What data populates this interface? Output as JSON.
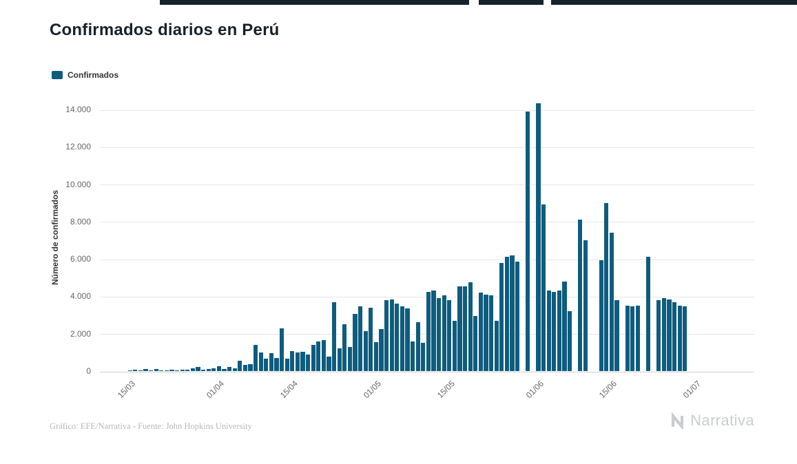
{
  "page": {
    "title": "Confirmados diarios en Perú",
    "legend_label": "Confirmados",
    "y_axis_title": "Número de confirmados",
    "credit": "Gráfico: EFE/Narrativa - Fuente: John Hopkins University",
    "brand": "Narrativa"
  },
  "colors": {
    "bar": "#0e5c7e",
    "grid": "#e6e6e6",
    "axis_line": "#cfcfcf",
    "axis_label": "#666666",
    "title": "#15212b",
    "credit": "#b8b8b8",
    "brand": "#c9cdd1",
    "top_strip": "#16222c"
  },
  "chart_data": {
    "type": "bar",
    "title": "Confirmados diarios en Perú",
    "xlabel": "",
    "ylabel": "Número de confirmados",
    "ylim": [
      0,
      14000
    ],
    "grid": true,
    "legend_position": "top-left",
    "y_ticks": [
      {
        "label": "0",
        "value": 0
      },
      {
        "label": "2.000",
        "value": 2000
      },
      {
        "label": "4.000",
        "value": 4000
      },
      {
        "label": "6.000",
        "value": 6000
      },
      {
        "label": "8.000",
        "value": 8000
      },
      {
        "label": "10.000",
        "value": 10000
      },
      {
        "label": "12.000",
        "value": 12000
      },
      {
        "label": "14.000",
        "value": 14000
      }
    ],
    "x_ticks": [
      {
        "label": "15/03",
        "day": 0
      },
      {
        "label": "01/04",
        "day": 17
      },
      {
        "label": "15/04",
        "day": 31
      },
      {
        "label": "01/05",
        "day": 47
      },
      {
        "label": "15/05",
        "day": 61
      },
      {
        "label": "01/06",
        "day": 78
      },
      {
        "label": "15/06",
        "day": 92
      },
      {
        "label": "01/07",
        "day": 108
      }
    ],
    "dates": [
      "15/03",
      "16/03",
      "17/03",
      "18/03",
      "19/03",
      "20/03",
      "21/03",
      "22/03",
      "23/03",
      "24/03",
      "25/03",
      "26/03",
      "27/03",
      "28/03",
      "29/03",
      "30/03",
      "31/03",
      "01/04",
      "02/04",
      "03/04",
      "04/04",
      "05/04",
      "06/04",
      "07/04",
      "08/04",
      "09/04",
      "10/04",
      "11/04",
      "12/04",
      "13/04",
      "14/04",
      "15/04",
      "16/04",
      "17/04",
      "18/04",
      "19/04",
      "20/04",
      "21/04",
      "22/04",
      "23/04",
      "24/04",
      "25/04",
      "26/04",
      "27/04",
      "28/04",
      "29/04",
      "30/04",
      "01/05",
      "02/05",
      "03/05",
      "04/05",
      "05/05",
      "06/05",
      "07/05",
      "08/05",
      "09/05",
      "10/05",
      "11/05",
      "12/05",
      "13/05",
      "14/05",
      "15/05",
      "16/05",
      "17/05",
      "18/05",
      "19/05",
      "20/05",
      "21/05",
      "22/05",
      "23/05",
      "24/05",
      "25/05",
      "26/05",
      "27/05",
      "28/05",
      "29/05",
      "30/05",
      "31/05",
      "01/06",
      "02/06",
      "03/06",
      "04/06",
      "05/06",
      "06/06",
      "07/06",
      "08/06",
      "09/06",
      "10/06",
      "11/06",
      "12/06",
      "13/06",
      "14/06",
      "15/06",
      "16/06",
      "17/06",
      "18/06",
      "19/06",
      "20/06",
      "21/06",
      "22/06",
      "23/06",
      "24/06",
      "25/06",
      "26/06",
      "27/06",
      "28/06",
      "29/06",
      "30/06"
    ],
    "series": [
      {
        "name": "Confirmados",
        "values": [
          40,
          90,
          30,
          110,
          40,
          120,
          40,
          50,
          70,
          40,
          70,
          90,
          130,
          210,
          60,
          110,
          160,
          250,
          110,
          220,
          160,
          560,
          330,
          380,
          1400,
          1000,
          670,
          950,
          690,
          2270,
          660,
          1060,
          1010,
          1050,
          890,
          1410,
          1570,
          1650,
          780,
          3700,
          1200,
          2500,
          1300,
          3050,
          3450,
          2150,
          3400,
          1550,
          2250,
          3800,
          3850,
          3600,
          3450,
          3350,
          1600,
          2600,
          1500,
          4250,
          4300,
          3900,
          4050,
          3800,
          2700,
          4550,
          4550,
          4750,
          2950,
          4200,
          4100,
          4050,
          2700,
          5800,
          6100,
          6200,
          5850,
          0,
          13900,
          0,
          14350,
          8900,
          4300,
          4250,
          4300,
          4800,
          3200,
          0,
          8100,
          7000,
          0,
          0,
          5950,
          9000,
          7400,
          3800,
          0,
          3500,
          3450,
          3500,
          0,
          6100,
          0,
          3800,
          3900,
          3850,
          3700,
          3500,
          3450,
          0
        ]
      }
    ]
  }
}
